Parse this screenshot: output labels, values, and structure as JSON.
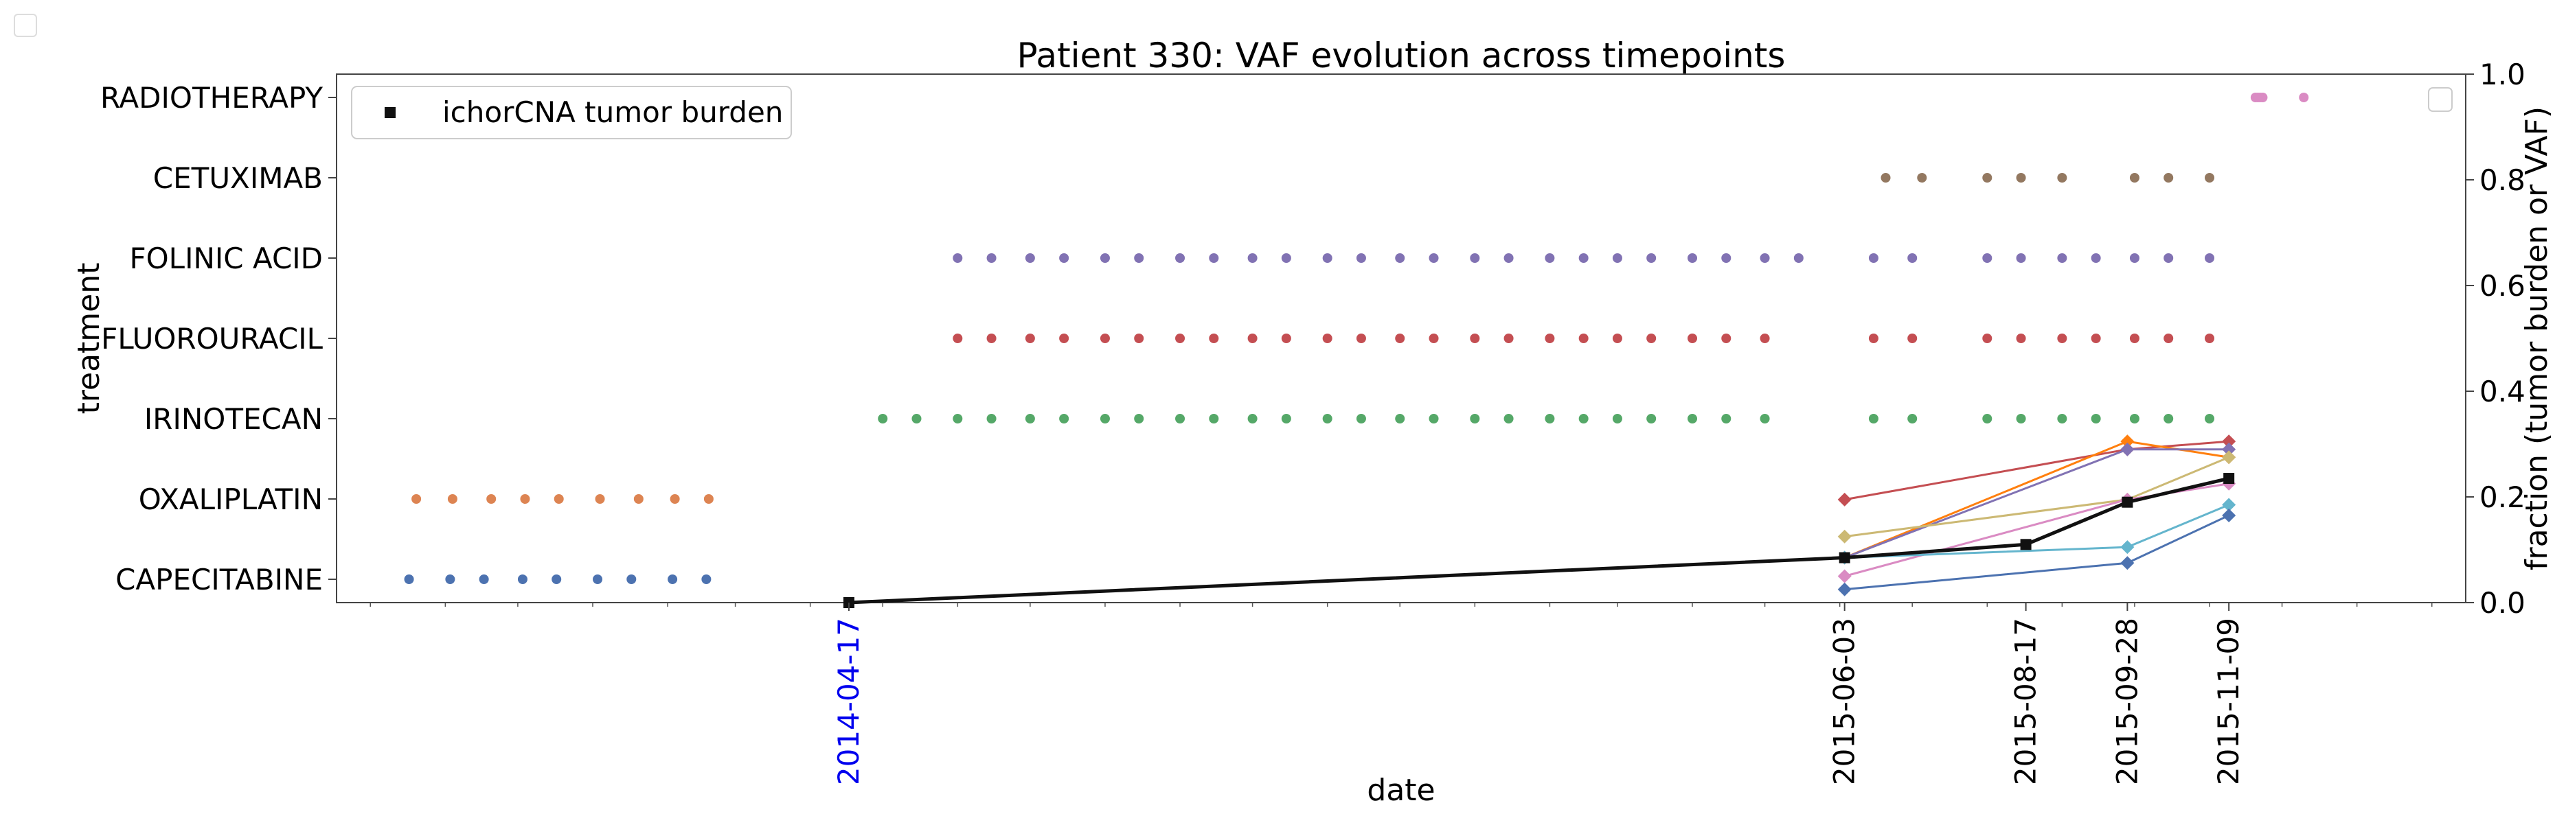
{
  "chart_data": {
    "type": "scatter",
    "title": "Patient 330: VAF evolution across timepoints",
    "xlabel": "date",
    "ylabel_left": "treatment",
    "ylabel_right": "fraction (tumor burden or VAF)",
    "x_range": [
      "2013-09-17",
      "2016-02-15"
    ],
    "right_ylim": [
      0.0,
      1.0
    ],
    "right_yticks": [
      "0.0",
      "0.2",
      "0.4",
      "0.6",
      "0.8",
      "1.0"
    ],
    "x_ticks": [
      {
        "label": "2014-04-17",
        "color": "#0000ee"
      },
      {
        "label": "2015-06-03",
        "color": "#000000"
      },
      {
        "label": "2015-08-17",
        "color": "#000000"
      },
      {
        "label": "2015-09-28",
        "color": "#000000"
      },
      {
        "label": "2015-11-09",
        "color": "#000000"
      }
    ],
    "legend": {
      "placement": "upper left",
      "entries": [
        "ichorCNA tumor burden"
      ]
    },
    "colors": {
      "capecitabine": "#4c72b0",
      "oxaliplatin": "#dd8452",
      "irinotecan": "#55a868",
      "fluorouracil": "#c44e52",
      "folinic_acid": "#8172b3",
      "cetuximab": "#937860",
      "radiotherapy": "#da8bc3",
      "tumor_burden": "#111111"
    },
    "treatments": [
      {
        "name": "CAPECITABINE",
        "color": "#4c72b0",
        "dates": [
          "2013-10-17",
          "2013-11-03",
          "2013-11-17",
          "2013-12-03",
          "2013-12-17",
          "2014-01-03",
          "2014-01-17",
          "2014-02-03",
          "2014-02-17"
        ]
      },
      {
        "name": "OXALIPLATIN",
        "color": "#dd8452",
        "dates": [
          "2013-10-20",
          "2013-11-04",
          "2013-11-20",
          "2013-12-04",
          "2013-12-18",
          "2014-01-04",
          "2014-01-20",
          "2014-02-04",
          "2014-02-18"
        ]
      },
      {
        "name": "IRINOTECAN",
        "color": "#55a868",
        "dates": [
          "2014-05-01",
          "2014-05-15",
          "2014-06-01",
          "2014-06-15",
          "2014-07-01",
          "2014-07-15",
          "2014-08-01",
          "2014-08-15",
          "2014-09-01",
          "2014-09-15",
          "2014-10-01",
          "2014-10-15",
          "2014-11-01",
          "2014-11-15",
          "2014-12-01",
          "2014-12-15",
          "2015-01-01",
          "2015-01-15",
          "2015-02-01",
          "2015-02-15",
          "2015-03-01",
          "2015-03-15",
          "2015-04-01",
          "2015-04-15",
          "2015-05-01",
          "2015-06-15",
          "2015-07-01",
          "2015-08-01",
          "2015-08-15",
          "2015-09-01",
          "2015-09-15",
          "2015-10-01",
          "2015-10-15",
          "2015-11-01"
        ]
      },
      {
        "name": "FLUOROURACIL",
        "color": "#c44e52",
        "dates": [
          "2014-06-01",
          "2014-06-15",
          "2014-07-01",
          "2014-07-15",
          "2014-08-01",
          "2014-08-15",
          "2014-09-01",
          "2014-09-15",
          "2014-10-01",
          "2014-10-15",
          "2014-11-01",
          "2014-11-15",
          "2014-12-01",
          "2014-12-15",
          "2015-01-01",
          "2015-01-15",
          "2015-02-01",
          "2015-02-15",
          "2015-03-01",
          "2015-03-15",
          "2015-04-01",
          "2015-04-15",
          "2015-05-01",
          "2015-06-15",
          "2015-07-01",
          "2015-08-01",
          "2015-08-15",
          "2015-09-01",
          "2015-09-15",
          "2015-10-01",
          "2015-10-15",
          "2015-11-01"
        ]
      },
      {
        "name": "FOLINIC ACID",
        "color": "#8172b3",
        "dates": [
          "2014-06-01",
          "2014-06-15",
          "2014-07-01",
          "2014-07-15",
          "2014-08-01",
          "2014-08-15",
          "2014-09-01",
          "2014-09-15",
          "2014-10-01",
          "2014-10-15",
          "2014-11-01",
          "2014-11-15",
          "2014-12-01",
          "2014-12-15",
          "2015-01-01",
          "2015-01-15",
          "2015-02-01",
          "2015-02-15",
          "2015-03-01",
          "2015-03-15",
          "2015-04-01",
          "2015-04-15",
          "2015-05-01",
          "2015-05-15",
          "2015-06-15",
          "2015-07-01",
          "2015-08-01",
          "2015-08-15",
          "2015-09-01",
          "2015-09-15",
          "2015-10-01",
          "2015-10-15",
          "2015-11-01"
        ]
      },
      {
        "name": "CETUXIMAB",
        "color": "#937860",
        "dates": [
          "2015-06-20",
          "2015-07-05",
          "2015-08-01",
          "2015-08-15",
          "2015-09-01",
          "2015-10-01",
          "2015-10-15",
          "2015-11-01"
        ]
      },
      {
        "name": "RADIOTHERAPY",
        "color": "#da8bc3",
        "dates": [
          "2015-11-20",
          "2015-11-21",
          "2015-11-22",
          "2015-11-23",
          "2015-12-10"
        ]
      }
    ],
    "tumor_burden": {
      "name": "ichorCNA tumor burden",
      "color": "#111111",
      "marker": "square",
      "points": [
        {
          "x": "2014-04-17",
          "y": 0.0
        },
        {
          "x": "2015-06-03",
          "y": 0.085
        },
        {
          "x": "2015-08-17",
          "y": 0.11
        },
        {
          "x": "2015-09-28",
          "y": 0.19
        },
        {
          "x": "2015-11-09",
          "y": 0.235
        }
      ]
    },
    "vaf_series": [
      {
        "color": "#c44e52",
        "values": [
          0.195,
          0.29,
          0.305
        ]
      },
      {
        "color": "#ff7f0e",
        "values": [
          0.085,
          0.305,
          0.275
        ]
      },
      {
        "color": "#8172b3",
        "values": [
          0.085,
          0.29,
          0.29
        ]
      },
      {
        "color": "#ccb974",
        "values": [
          0.125,
          0.195,
          0.275
        ]
      },
      {
        "color": "#da8bc3",
        "values": [
          0.05,
          0.195,
          0.225
        ]
      },
      {
        "color": "#64b5cd",
        "values": [
          0.085,
          0.105,
          0.185
        ]
      },
      {
        "color": "#4c72b0",
        "values": [
          0.025,
          0.075,
          0.165
        ]
      }
    ],
    "vaf_dates": [
      "2015-06-03",
      "2015-09-28",
      "2015-11-09"
    ]
  }
}
